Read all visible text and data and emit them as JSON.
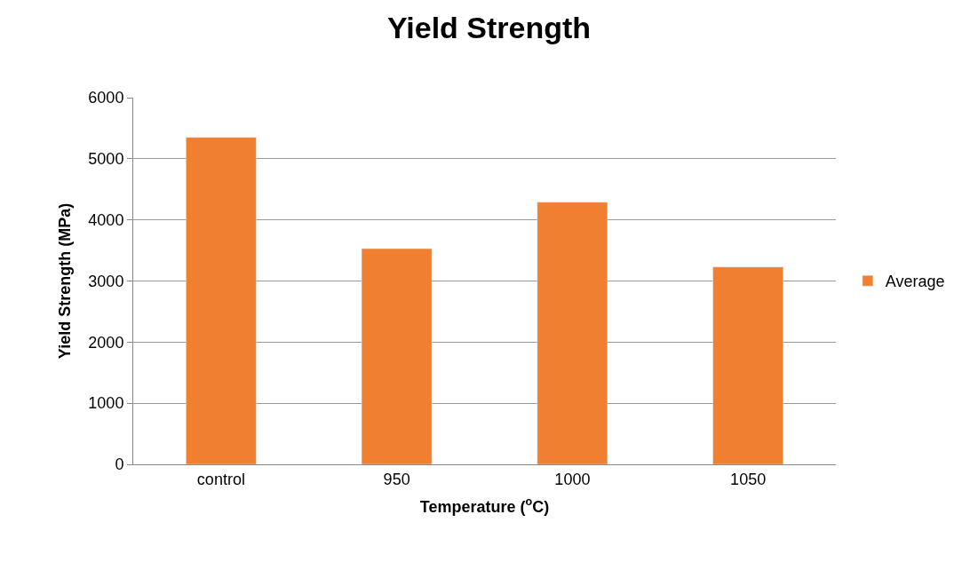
{
  "chart_data": {
    "type": "bar",
    "title": "Yield Strength",
    "xlabel": "Temperature ($^{o}$C)",
    "ylabel": "Yield Strength (MPa)",
    "categories": [
      "control",
      "950",
      "1000",
      "1050"
    ],
    "series": [
      {
        "name": "Average",
        "color": "#f07f2f",
        "values": [
          5350,
          3530,
          4290,
          3230
        ]
      }
    ],
    "ylim": [
      0,
      6000
    ],
    "yticks": [
      0,
      1000,
      2000,
      3000,
      4000,
      5000,
      6000
    ],
    "grid": "y",
    "legend": "right"
  }
}
